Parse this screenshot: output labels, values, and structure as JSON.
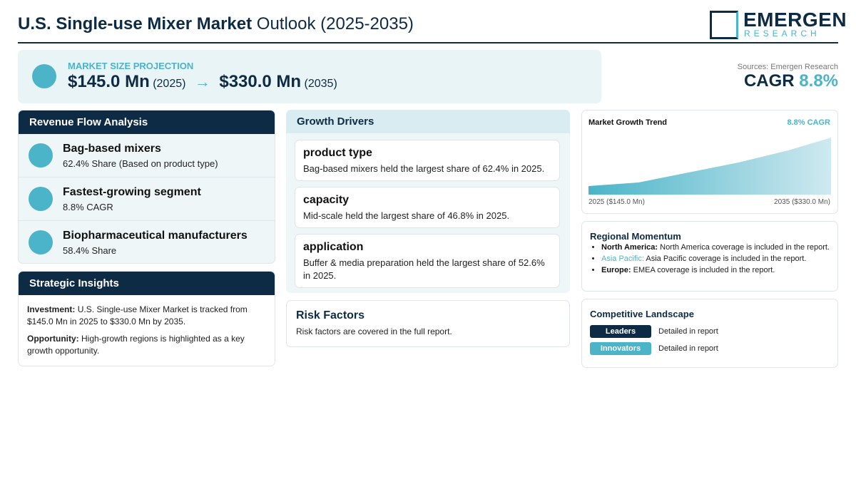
{
  "header": {
    "title_bold": "U.S. Single-use Mixer Market",
    "title_rest": "Outlook (2025-2035)",
    "logo_main": "EMERGEN",
    "logo_sub": "RESEARCH"
  },
  "projection": {
    "label": "MARKET SIZE PROJECTION",
    "start_value": "$145.0 Mn",
    "start_year": "(2025)",
    "arrow": "→",
    "end_value": "$330.0 Mn",
    "end_year": "(2035)"
  },
  "cagr": {
    "source": "Sources: Emergen Research",
    "label": "CAGR",
    "value": "8.8%"
  },
  "revenue_flow": {
    "title": "Revenue Flow Analysis",
    "items": [
      {
        "title": "Bag-based mixers",
        "detail": "62.4% Share (Based on product type)"
      },
      {
        "title": "Fastest-growing segment",
        "detail": "8.8% CAGR"
      },
      {
        "title": "Biopharmaceutical manufacturers",
        "detail": "58.4% Share"
      }
    ]
  },
  "strategic_insights": {
    "title": "Strategic Insights",
    "items": [
      {
        "label": "Investment:",
        "text": "U.S. Single-use Mixer Market is tracked from $145.0 Mn in 2025 to $330.0 Mn by 2035."
      },
      {
        "label": "Opportunity:",
        "text": "High-growth regions is highlighted as a key growth opportunity."
      }
    ]
  },
  "growth_drivers": {
    "title": "Growth Drivers",
    "items": [
      {
        "title": "product type",
        "text": "Bag-based mixers held the largest share of 62.4% in 2025."
      },
      {
        "title": "capacity",
        "text": "Mid-scale held the largest share of 46.8% in 2025."
      },
      {
        "title": "application",
        "text": "Buffer & media preparation held the largest share of 52.6% in 2025."
      }
    ]
  },
  "risk_factors": {
    "title": "Risk Factors",
    "text": "Risk factors are covered in the full report."
  },
  "market_trend": {
    "title": "Market Growth Trend",
    "cagr": "8.8% CAGR",
    "start_label": "2025 ($145.0 Mn)",
    "end_label": "2035 ($330.0 Mn)"
  },
  "regional_momentum": {
    "title": "Regional Momentum",
    "items": [
      {
        "region": "North America:",
        "text": "North America coverage is included in the report."
      },
      {
        "region": "Asia Pacific:",
        "text": "Asia Pacific coverage is included in the report."
      },
      {
        "region": "Europe:",
        "text": "EMEA coverage is included in the report."
      }
    ]
  },
  "competitive_landscape": {
    "title": "Competitive Landscape",
    "items": [
      {
        "badge": "Leaders",
        "text": "Detailed in report"
      },
      {
        "badge": "Innovators",
        "text": "Detailed in report"
      }
    ]
  }
}
